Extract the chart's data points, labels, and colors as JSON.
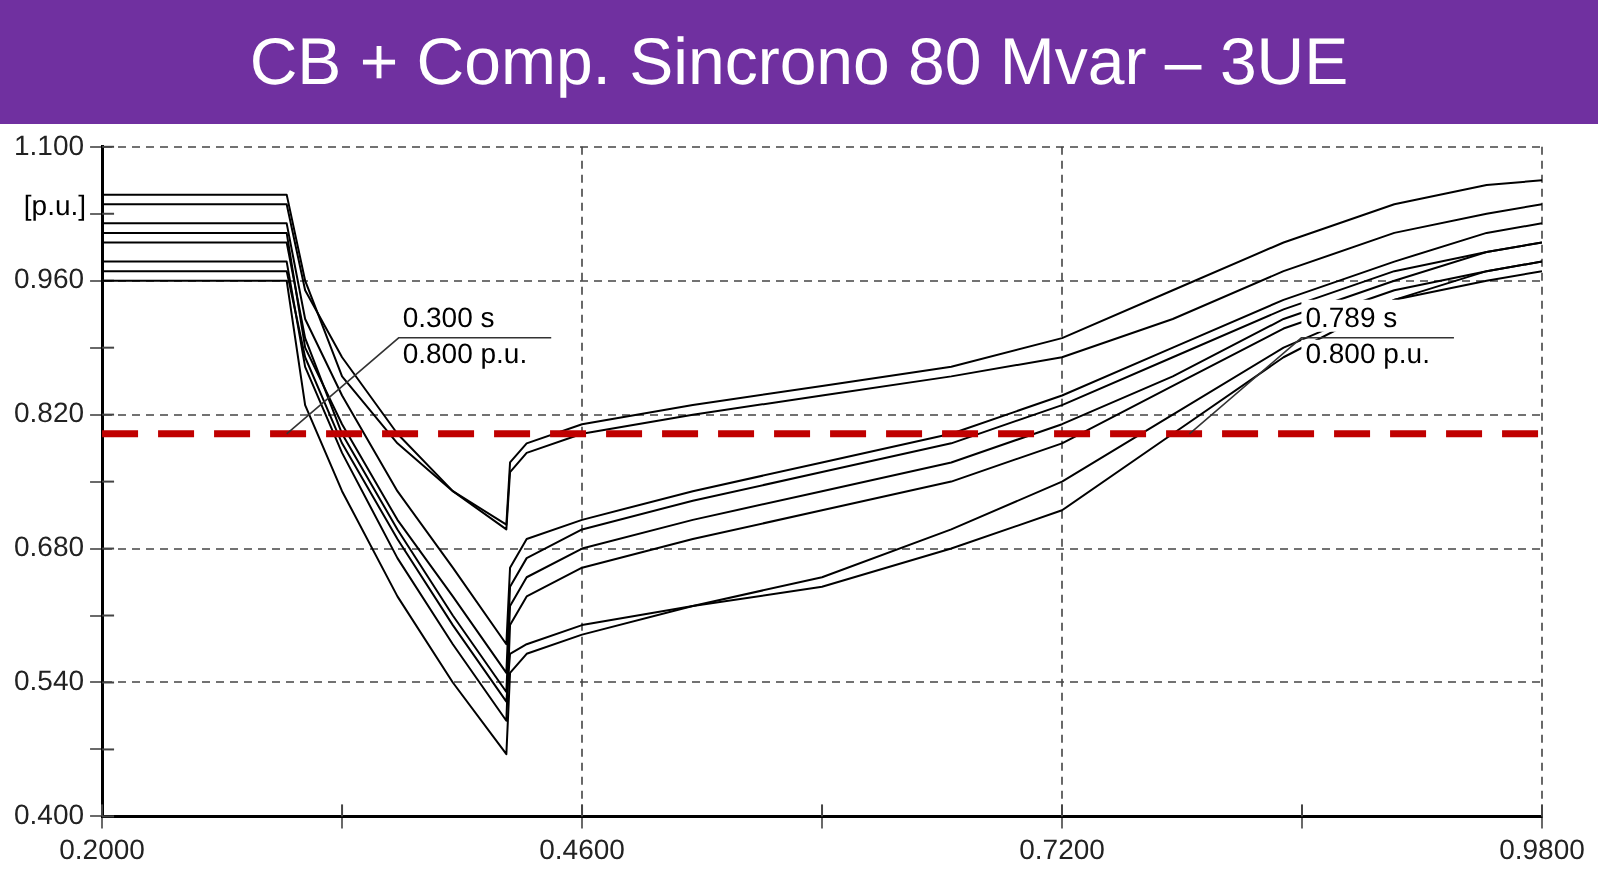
{
  "chart_data": {
    "type": "line",
    "title": "CB + Comp. Sincrono 80 Mvar – 3UE",
    "ylabel": "[p.u.]",
    "x": [
      0.2,
      0.3,
      0.31,
      0.33,
      0.36,
      0.39,
      0.419,
      0.421,
      0.43,
      0.46,
      0.52,
      0.59,
      0.66,
      0.72,
      0.78,
      0.84,
      0.9,
      0.95,
      0.98
    ],
    "series": [
      {
        "color": "#000000",
        "values": [
          1.05,
          1.05,
          0.96,
          0.86,
          0.79,
          0.74,
          0.705,
          0.77,
          0.79,
          0.81,
          0.83,
          0.85,
          0.87,
          0.9,
          0.95,
          1.0,
          1.04,
          1.06,
          1.065
        ]
      },
      {
        "color": "#000000",
        "values": [
          0.96,
          0.96,
          0.83,
          0.74,
          0.63,
          0.54,
          0.465,
          0.55,
          0.57,
          0.59,
          0.62,
          0.65,
          0.7,
          0.75,
          0.82,
          0.89,
          0.94,
          0.96,
          0.97
        ]
      },
      {
        "color": "#000000",
        "values": [
          1.0,
          1.0,
          0.9,
          0.8,
          0.7,
          0.61,
          0.53,
          0.62,
          0.65,
          0.68,
          0.71,
          0.74,
          0.77,
          0.81,
          0.86,
          0.92,
          0.96,
          0.99,
          1.0
        ]
      },
      {
        "color": "#000000",
        "values": [
          1.02,
          1.02,
          0.92,
          0.84,
          0.74,
          0.66,
          0.58,
          0.66,
          0.69,
          0.71,
          0.74,
          0.77,
          0.8,
          0.84,
          0.89,
          0.94,
          0.98,
          1.01,
          1.02
        ]
      },
      {
        "color": "#000000",
        "values": [
          0.98,
          0.98,
          0.87,
          0.78,
          0.67,
          0.58,
          0.5,
          0.6,
          0.63,
          0.66,
          0.69,
          0.72,
          0.75,
          0.79,
          0.85,
          0.91,
          0.95,
          0.97,
          0.98
        ]
      },
      {
        "color": "#000000",
        "values": [
          1.04,
          1.04,
          0.95,
          0.88,
          0.8,
          0.74,
          0.7,
          0.76,
          0.78,
          0.8,
          0.82,
          0.84,
          0.86,
          0.88,
          0.92,
          0.97,
          1.01,
          1.03,
          1.04
        ]
      },
      {
        "color": "#000000",
        "values": [
          0.97,
          0.97,
          0.88,
          0.79,
          0.69,
          0.6,
          0.52,
          0.57,
          0.58,
          0.6,
          0.62,
          0.64,
          0.68,
          0.72,
          0.8,
          0.88,
          0.94,
          0.97,
          0.98
        ]
      },
      {
        "color": "#000000",
        "values": [
          1.01,
          1.01,
          0.89,
          0.81,
          0.71,
          0.63,
          0.55,
          0.64,
          0.67,
          0.7,
          0.73,
          0.76,
          0.79,
          0.83,
          0.88,
          0.93,
          0.97,
          0.99,
          1.0
        ]
      }
    ],
    "xlim": [
      0.2,
      0.98
    ],
    "xticks": [
      {
        "value": 0.2,
        "label": "0.2000"
      },
      {
        "value": 0.33,
        "label": null
      },
      {
        "value": 0.46,
        "label": "0.4600"
      },
      {
        "value": 0.59,
        "label": null
      },
      {
        "value": 0.72,
        "label": "0.7200"
      },
      {
        "value": 0.85,
        "label": null
      },
      {
        "value": 0.98,
        "label": "0.9800"
      }
    ],
    "ylim": [
      0.4,
      1.1
    ],
    "yticks": [
      {
        "value": 0.4,
        "label": "0.400"
      },
      {
        "value": 0.47,
        "label": null
      },
      {
        "value": 0.54,
        "label": "0.540"
      },
      {
        "value": 0.61,
        "label": null
      },
      {
        "value": 0.68,
        "label": "0.680"
      },
      {
        "value": 0.75,
        "label": null
      },
      {
        "value": 0.82,
        "label": "0.820"
      },
      {
        "value": 0.89,
        "label": null
      },
      {
        "value": 0.96,
        "label": "0.960"
      },
      {
        "value": 1.03,
        "label": null
      },
      {
        "value": 1.1,
        "label": "1.100"
      }
    ],
    "ref_lines": [
      {
        "axis": "y",
        "value": 0.8,
        "color": "#c00000",
        "line_style": "dashed"
      }
    ],
    "annotations": [
      {
        "text": "0.300 s\n0.800 p.u.",
        "x": 0.3,
        "y": 0.8
      },
      {
        "text": "0.789 s\n0.800 p.u.",
        "x": 0.789,
        "y": 0.8
      }
    ],
    "grid": true,
    "legend": false,
    "marker": "none",
    "line_style": "solid"
  }
}
